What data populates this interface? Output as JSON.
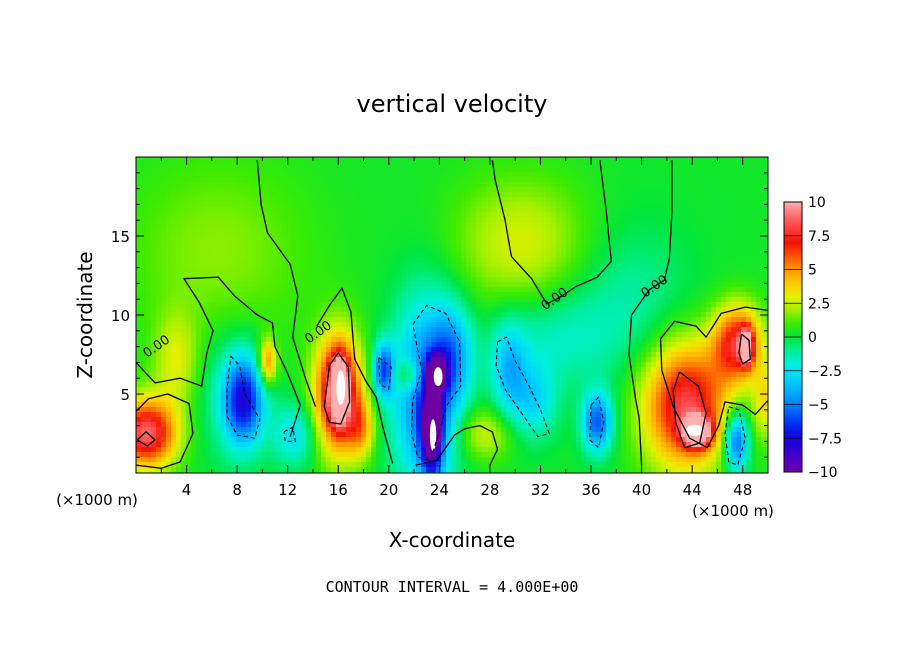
{
  "chart_data": {
    "type": "heatmap",
    "title": "vertical velocity",
    "xlabel": "X-coordinate",
    "ylabel": "Z-coordinate",
    "x_unit_left": "(×1000 m)",
    "x_unit_right": "(×1000 m)",
    "footer": "CONTOUR INTERVAL = 4.000E+00",
    "xlim": [
      0,
      50
    ],
    "ylim": [
      0,
      20
    ],
    "x_ticks": [
      "4",
      "8",
      "12",
      "16",
      "20",
      "24",
      "28",
      "32",
      "36",
      "40",
      "44",
      "48"
    ],
    "x_tick_values": [
      4,
      8,
      12,
      16,
      20,
      24,
      28,
      32,
      36,
      40,
      44,
      48
    ],
    "y_ticks": [
      "5",
      "10",
      "15"
    ],
    "y_tick_values": [
      5,
      10,
      15
    ],
    "colorbar": {
      "range": [
        -10,
        10
      ],
      "labels": [
        "10",
        "7.5",
        "5",
        "2.5",
        "0",
        "−2.5",
        "−5",
        "−7.5",
        "−10"
      ],
      "label_values": [
        10,
        7.5,
        5,
        2.5,
        0,
        -2.5,
        -5,
        -7.5,
        -10
      ]
    },
    "background_value": 0.3,
    "contour_labels": [
      {
        "text": "0.00",
        "x": 1.8,
        "z": 7.8
      },
      {
        "text": "0.00",
        "x": 14.6,
        "z": 8.7
      },
      {
        "text": "0.00",
        "x": 33.3,
        "z": 10.8
      },
      {
        "text": "0.00",
        "x": 41.2,
        "z": 11.6
      }
    ],
    "features": [
      {
        "x": 0.8,
        "z": 2.5,
        "value": 8.5,
        "rx": 2.0,
        "rz": 1.8
      },
      {
        "x": 7.5,
        "z": 5.0,
        "value": -1.5,
        "rx": 2.5,
        "rz": 3.5
      },
      {
        "x": 8.5,
        "z": 4.6,
        "value": -7.0,
        "rx": 1.3,
        "rz": 2.3
      },
      {
        "x": 10.4,
        "z": 7.0,
        "value": 5.0,
        "rx": 0.6,
        "rz": 1.2
      },
      {
        "x": 12.5,
        "z": 2.4,
        "value": -3.0,
        "rx": 1.4,
        "rz": 1.6
      },
      {
        "x": 16.0,
        "z": 5.0,
        "value": 9.5,
        "rx": 1.5,
        "rz": 3.0
      },
      {
        "x": 16.1,
        "z": 5.3,
        "value": 10.0,
        "rx": 0.5,
        "rz": 1.5
      },
      {
        "x": 17.8,
        "z": 2.8,
        "value": 3.5,
        "rx": 0.9,
        "rz": 1.6
      },
      {
        "x": 19.6,
        "z": 6.5,
        "value": -6.0,
        "rx": 0.7,
        "rz": 1.4
      },
      {
        "x": 21.5,
        "z": 6.2,
        "value": 3.0,
        "rx": 1.0,
        "rz": 0.9
      },
      {
        "x": 23.0,
        "z": 5.0,
        "value": -6.0,
        "rx": 2.2,
        "rz": 5.0
      },
      {
        "x": 23.4,
        "z": 2.6,
        "value": -9.5,
        "rx": 0.7,
        "rz": 2.2
      },
      {
        "x": 23.8,
        "z": 6.3,
        "value": -9.8,
        "rx": 0.6,
        "rz": 0.9
      },
      {
        "x": 25.0,
        "z": 7.5,
        "value": -3.5,
        "rx": 1.3,
        "rz": 2.5
      },
      {
        "x": 27.5,
        "z": 2.5,
        "value": 2.5,
        "rx": 2.0,
        "rz": 1.4
      },
      {
        "x": 29.5,
        "z": 6.5,
        "value": -3.5,
        "rx": 1.2,
        "rz": 2.5
      },
      {
        "x": 31.5,
        "z": 4.5,
        "value": -3.0,
        "rx": 1.5,
        "rz": 2.0
      },
      {
        "x": 33.0,
        "z": 8.5,
        "value": -1.8,
        "rx": 4.0,
        "rz": 2.5
      },
      {
        "x": 30.5,
        "z": 14.5,
        "value": 2.5,
        "rx": 4.5,
        "rz": 3.5
      },
      {
        "x": 36.5,
        "z": 3.2,
        "value": -6.0,
        "rx": 1.0,
        "rz": 1.6
      },
      {
        "x": 39.0,
        "z": 11.0,
        "value": -1.5,
        "rx": 4.0,
        "rz": 4.0
      },
      {
        "x": 43.5,
        "z": 4.3,
        "value": 8.0,
        "rx": 2.8,
        "rz": 3.3
      },
      {
        "x": 44.4,
        "z": 2.6,
        "value": 10.0,
        "rx": 0.9,
        "rz": 0.8
      },
      {
        "x": 47.6,
        "z": 8.2,
        "value": 7.0,
        "rx": 1.6,
        "rz": 2.0
      },
      {
        "x": 48.3,
        "z": 8.0,
        "value": 9.0,
        "rx": 0.4,
        "rz": 0.9
      },
      {
        "x": 47.5,
        "z": 2.0,
        "value": -6.5,
        "rx": 0.8,
        "rz": 1.6
      },
      {
        "x": 49.8,
        "z": 4.5,
        "value": 3.0,
        "rx": 0.8,
        "rz": 2.0
      },
      {
        "x": 6.5,
        "z": 14.0,
        "value": 1.5,
        "rx": 6.0,
        "rz": 5.0
      },
      {
        "x": 3.2,
        "z": 7.0,
        "value": 2.5,
        "rx": 1.5,
        "rz": 2.5
      }
    ],
    "zero_contours": [
      [
        [
          0.0,
          7.0
        ],
        [
          1.5,
          5.7
        ],
        [
          3.5,
          6.0
        ],
        [
          5.2,
          5.5
        ],
        [
          5.6,
          7.6
        ],
        [
          6.1,
          9.0
        ],
        [
          5.0,
          10.8
        ],
        [
          3.8,
          12.3
        ],
        [
          6.5,
          12.4
        ],
        [
          7.8,
          11.2
        ],
        [
          9.6,
          10.0
        ],
        [
          10.8,
          9.5
        ],
        [
          11.0,
          8.0
        ],
        [
          12.0,
          6.3
        ],
        [
          13.0,
          4.3
        ],
        [
          12.2,
          2.3
        ]
      ],
      [
        [
          9.6,
          19.8
        ],
        [
          9.9,
          17.0
        ],
        [
          10.4,
          15.2
        ],
        [
          12.2,
          13.2
        ],
        [
          12.8,
          11.2
        ],
        [
          12.4,
          8.6
        ],
        [
          13.4,
          6.0
        ],
        [
          14.2,
          4.2
        ]
      ],
      [
        [
          14.3,
          9.3
        ],
        [
          15.3,
          10.6
        ],
        [
          16.3,
          11.7
        ],
        [
          17.0,
          10.2
        ],
        [
          17.3,
          7.2
        ],
        [
          18.2,
          5.8
        ],
        [
          19.0,
          4.8
        ],
        [
          19.5,
          3.0
        ],
        [
          20.3,
          0.6
        ]
      ],
      [
        [
          28.2,
          19.8
        ],
        [
          28.4,
          18.6
        ],
        [
          29.2,
          16.0
        ],
        [
          29.7,
          13.7
        ],
        [
          31.3,
          12.3
        ],
        [
          32.5,
          10.7
        ],
        [
          33.5,
          11.1
        ],
        [
          34.8,
          11.8
        ],
        [
          36.5,
          12.4
        ],
        [
          37.6,
          13.4
        ],
        [
          37.2,
          16.6
        ],
        [
          36.7,
          19.8
        ]
      ],
      [
        [
          42.4,
          19.8
        ],
        [
          42.4,
          16.5
        ],
        [
          42.2,
          13.6
        ],
        [
          41.8,
          12.2
        ],
        [
          40.6,
          11.6
        ],
        [
          39.2,
          10.0
        ],
        [
          39.0,
          7.5
        ],
        [
          39.5,
          4.8
        ],
        [
          39.8,
          3.5
        ],
        [
          40.0,
          0.5
        ]
      ],
      [
        [
          50.0,
          10.3
        ],
        [
          48.2,
          10.5
        ],
        [
          46.3,
          10.1
        ],
        [
          45.1,
          8.6
        ],
        [
          44.3,
          9.3
        ],
        [
          42.6,
          9.6
        ],
        [
          41.5,
          8.5
        ],
        [
          41.6,
          6.5
        ],
        [
          42.5,
          4.2
        ],
        [
          43.8,
          2.2
        ],
        [
          45.2,
          1.6
        ],
        [
          46.1,
          3.0
        ],
        [
          46.6,
          4.5
        ],
        [
          48.0,
          4.3
        ],
        [
          49.0,
          3.7
        ],
        [
          50.0,
          4.6
        ]
      ],
      [
        [
          0.0,
          3.9
        ],
        [
          1.0,
          4.7
        ],
        [
          2.5,
          5.0
        ],
        [
          4.2,
          4.4
        ],
        [
          4.5,
          2.5
        ],
        [
          3.5,
          0.7
        ],
        [
          2.0,
          0.3
        ],
        [
          0.0,
          0.5
        ]
      ],
      [
        [
          22.1,
          0.5
        ],
        [
          23.8,
          0.8
        ],
        [
          25.2,
          2.4
        ],
        [
          26.0,
          2.8
        ],
        [
          27.2,
          3.0
        ],
        [
          28.2,
          2.6
        ],
        [
          28.6,
          1.5
        ],
        [
          28.0,
          0.5
        ]
      ]
    ],
    "positive_contours": [
      [
        [
          14.9,
          4.2
        ],
        [
          15.3,
          6.8
        ],
        [
          16.0,
          7.6
        ],
        [
          16.8,
          6.7
        ],
        [
          16.9,
          4.5
        ],
        [
          16.2,
          3.1
        ],
        [
          15.3,
          3.2
        ],
        [
          14.9,
          4.2
        ]
      ],
      [
        [
          43.0,
          6.4
        ],
        [
          44.5,
          5.5
        ],
        [
          45.1,
          3.8
        ],
        [
          44.6,
          1.9
        ],
        [
          43.4,
          1.6
        ],
        [
          42.7,
          3.2
        ],
        [
          42.5,
          5.2
        ],
        [
          43.0,
          6.4
        ]
      ],
      [
        [
          47.9,
          8.8
        ],
        [
          48.5,
          8.4
        ],
        [
          48.6,
          7.2
        ],
        [
          48.0,
          6.9
        ],
        [
          47.7,
          7.6
        ],
        [
          47.9,
          8.8
        ]
      ],
      [
        [
          0.1,
          2.1
        ],
        [
          0.8,
          2.6
        ],
        [
          1.5,
          2.1
        ],
        [
          0.9,
          1.7
        ],
        [
          0.1,
          2.1
        ]
      ]
    ],
    "negative_contours": [
      [
        [
          7.5,
          7.4
        ],
        [
          8.2,
          6.8
        ],
        [
          8.6,
          5.0
        ],
        [
          9.8,
          3.4
        ],
        [
          9.4,
          2.2
        ],
        [
          8.0,
          2.4
        ],
        [
          7.2,
          3.6
        ],
        [
          7.2,
          5.3
        ],
        [
          7.5,
          7.4
        ]
      ],
      [
        [
          19.2,
          7.3
        ],
        [
          20.2,
          6.7
        ],
        [
          20.0,
          5.3
        ],
        [
          19.3,
          5.6
        ],
        [
          19.2,
          7.3
        ]
      ],
      [
        [
          21.9,
          9.4
        ],
        [
          23.0,
          10.6
        ],
        [
          24.5,
          10.1
        ],
        [
          25.6,
          8.3
        ],
        [
          25.7,
          5.5
        ],
        [
          24.6,
          4.3
        ],
        [
          23.9,
          2.4
        ],
        [
          23.3,
          0.8
        ],
        [
          22.3,
          1.0
        ],
        [
          21.8,
          2.5
        ],
        [
          21.9,
          4.6
        ],
        [
          22.6,
          6.5
        ],
        [
          21.9,
          9.4
        ]
      ],
      [
        [
          28.6,
          8.3
        ],
        [
          29.3,
          8.6
        ],
        [
          30.0,
          7.1
        ],
        [
          31.1,
          5.5
        ],
        [
          32.0,
          4.0
        ],
        [
          32.7,
          2.5
        ],
        [
          31.8,
          2.3
        ],
        [
          30.5,
          3.8
        ],
        [
          29.2,
          5.3
        ],
        [
          28.5,
          6.8
        ],
        [
          28.6,
          8.3
        ]
      ],
      [
        [
          36.0,
          4.3
        ],
        [
          36.6,
          4.8
        ],
        [
          37.0,
          3.2
        ],
        [
          36.6,
          1.6
        ],
        [
          35.9,
          2.1
        ],
        [
          36.0,
          4.3
        ]
      ],
      [
        [
          46.9,
          4.2
        ],
        [
          47.7,
          4.0
        ],
        [
          48.2,
          2.2
        ],
        [
          47.6,
          0.5
        ],
        [
          46.9,
          0.7
        ],
        [
          46.6,
          2.5
        ],
        [
          46.9,
          4.2
        ]
      ],
      [
        [
          11.7,
          2.6
        ],
        [
          12.4,
          2.9
        ],
        [
          12.6,
          2.0
        ],
        [
          11.8,
          2.0
        ],
        [
          11.7,
          2.6
        ]
      ]
    ],
    "white_spots": [
      {
        "x": 16.2,
        "z": 5.4,
        "rx": 0.35,
        "rz": 1.1
      },
      {
        "x": 23.9,
        "z": 6.1,
        "rx": 0.35,
        "rz": 0.6
      },
      {
        "x": 23.5,
        "z": 2.4,
        "rx": 0.25,
        "rz": 1.0
      },
      {
        "x": 44.2,
        "z": 2.7,
        "rx": 0.7,
        "rz": 0.35
      }
    ]
  }
}
